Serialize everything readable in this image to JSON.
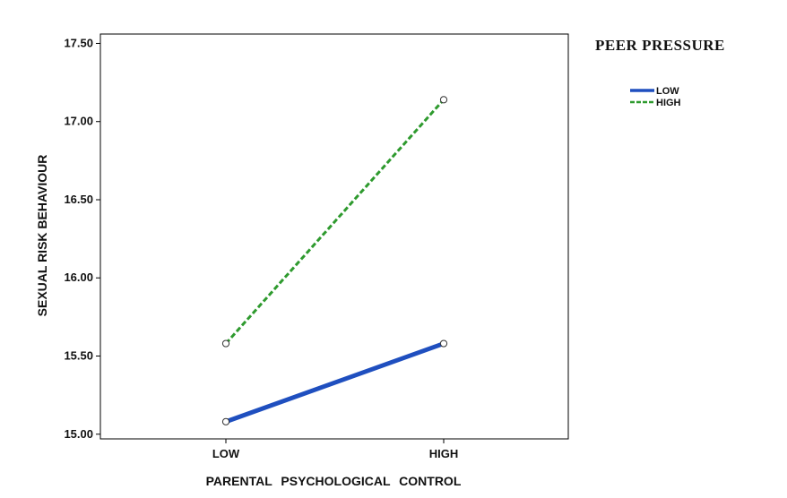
{
  "chart_data": {
    "type": "line",
    "xlabel": "PARENTAL PSYCHOLOGICAL CONTROL",
    "ylabel": "SEXUAL RISK BEHAVIOUR",
    "categories": [
      "LOW",
      "HIGH"
    ],
    "ylim": [
      14.97,
      17.56
    ],
    "yticks": [
      "15.00",
      "15.50",
      "16.00",
      "16.50",
      "17.00",
      "17.50"
    ],
    "legend": {
      "title": "PEER PRESSURE",
      "placement": "right"
    },
    "grid": false,
    "series": [
      {
        "name": "LOW",
        "values": [
          15.08,
          15.58
        ],
        "color": "#1f4fbf",
        "style": "solid"
      },
      {
        "name": "HIGH",
        "values": [
          15.58,
          17.14
        ],
        "color": "#2e9a2e",
        "style": "dashed"
      }
    ]
  }
}
